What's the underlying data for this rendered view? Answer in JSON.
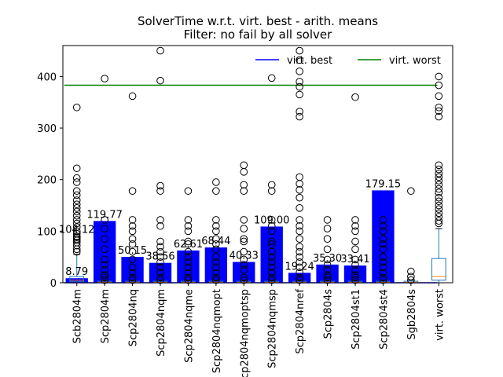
{
  "chart_data": {
    "type": "bar",
    "title_line1": "SolverTime w.r.t. virt. best - arith. means",
    "title_line2": "Filter: no fail by all solver",
    "xlabel": "",
    "ylabel": "",
    "ylim": [
      0,
      460
    ],
    "yticks": [
      0,
      100,
      200,
      300,
      400
    ],
    "grid": false,
    "legend_position": "top-right",
    "categories": [
      "Scb2804m",
      "Scp2804m",
      "Scp2804nq",
      "Scp2804nqm",
      "Scp2804nqme",
      "Scp2804nqmopt",
      "Scp2804nqmoptsp",
      "Scp2804nqmsp",
      "Scp2804nref",
      "Scp2804s",
      "Scp2804st1",
      "Scp2804st4",
      "Sgb2804s",
      "virt. worst"
    ],
    "tick_labels": [
      "Scb2804m",
      "Scp2804m",
      "Scp2804nq",
      "Scp2804nqm",
      "Scp2804nqme",
      "Scp2804nqmopt",
      "Scp2804nqmoptsp",
      "Scp2804nqmsp",
      "Scp2804nref",
      "Scp2804s",
      "Scp2804st1",
      "Scp2804st4",
      "Sgb2804s",
      "virt. worst"
    ],
    "bar_values": [
      8.79,
      119.77,
      50.15,
      38.56,
      62.61,
      68.44,
      40.33,
      109.0,
      19.24,
      35.3,
      33.41,
      179.15,
      null,
      null
    ],
    "bar_labels": [
      "8.79",
      "119.77",
      "50.15",
      "38.56",
      "62.61",
      "68.44",
      "40.33",
      "109.00",
      "19.24",
      "35.30",
      "33.41",
      "179.15",
      "",
      ""
    ],
    "extra_labels": [
      {
        "text": "104.12",
        "x_index": 0,
        "y": 104.12
      }
    ],
    "bar_color": "#0000ff",
    "lines": [
      {
        "name": "virt. best",
        "y": 0,
        "color": "#0000ff"
      },
      {
        "name": "virt. worst",
        "y": 383,
        "color": "#008000"
      }
    ],
    "boxes": [
      {
        "q1": 2,
        "med": 5,
        "q3": 12,
        "wlo": 0,
        "whi": 55
      },
      {
        "q1": 0,
        "med": 1,
        "q3": 3,
        "wlo": 0,
        "whi": 5
      },
      {
        "q1": 0,
        "med": 1,
        "q3": 3,
        "wlo": 0,
        "whi": 5
      },
      {
        "q1": 0,
        "med": 1,
        "q3": 3,
        "wlo": 0,
        "whi": 5
      },
      {
        "q1": 0,
        "med": 1,
        "q3": 3,
        "wlo": 0,
        "whi": 5
      },
      {
        "q1": 0,
        "med": 1,
        "q3": 3,
        "wlo": 0,
        "whi": 5
      },
      {
        "q1": 0,
        "med": 1,
        "q3": 3,
        "wlo": 0,
        "whi": 5
      },
      {
        "q1": 0,
        "med": 1,
        "q3": 3,
        "wlo": 0,
        "whi": 5
      },
      {
        "q1": 0,
        "med": 1,
        "q3": 3,
        "wlo": 0,
        "whi": 5
      },
      {
        "q1": 0,
        "med": 1,
        "q3": 3,
        "wlo": 0,
        "whi": 5
      },
      {
        "q1": 0,
        "med": 1,
        "q3": 3,
        "wlo": 0,
        "whi": 5
      },
      {
        "q1": 0,
        "med": 1,
        "q3": 3,
        "wlo": 0,
        "whi": 5
      },
      {
        "q1": 0,
        "med": 1,
        "q3": 3,
        "wlo": 0,
        "whi": 5
      },
      {
        "q1": 5,
        "med": 12,
        "q3": 47,
        "wlo": 0,
        "whi": 105
      }
    ],
    "outliers": [
      [
        340,
        222,
        203,
        195,
        178,
        170,
        160,
        152,
        145,
        138,
        130,
        122,
        115,
        108,
        100,
        95,
        90,
        88,
        85,
        82,
        78,
        72,
        65,
        60
      ],
      [
        396,
        122,
        105,
        85,
        65,
        45,
        35,
        25,
        15,
        10,
        5
      ],
      [
        362,
        178,
        122,
        110,
        100,
        85,
        75,
        60,
        45,
        30,
        20,
        10,
        5
      ],
      [
        450,
        392,
        188,
        178,
        122,
        110,
        80,
        70,
        60,
        50,
        40,
        30,
        20,
        10,
        5
      ],
      [
        178,
        122,
        110,
        100,
        80,
        75,
        60,
        50,
        40,
        30,
        20,
        10,
        5
      ],
      [
        195,
        178,
        122,
        110,
        100,
        85,
        75,
        65,
        50,
        40,
        30,
        20,
        10,
        5
      ],
      [
        228,
        215,
        190,
        178,
        122,
        105,
        85,
        80,
        60,
        45,
        35,
        25,
        10,
        5
      ],
      [
        397,
        190,
        178,
        122,
        110,
        100,
        80,
        75,
        60,
        50,
        40,
        30,
        20,
        10,
        5
      ],
      [
        450,
        432,
        410,
        390,
        380,
        365,
        332,
        322,
        205,
        192,
        180,
        165,
        145,
        122,
        110,
        100,
        85,
        70,
        60,
        50,
        40,
        30,
        20,
        10,
        5
      ],
      [
        122,
        105,
        85,
        65,
        45,
        35,
        25,
        15,
        10,
        5
      ],
      [
        360,
        122,
        110,
        100,
        80,
        65,
        45,
        35,
        25,
        15,
        10,
        5
      ],
      [
        122,
        110,
        100,
        85,
        75,
        65,
        50,
        40,
        30,
        20,
        10,
        5
      ],
      [
        178,
        22,
        12,
        5
      ],
      [
        400,
        383,
        362,
        340,
        333,
        322,
        228,
        220,
        212,
        205,
        198,
        190,
        182,
        175,
        165,
        158,
        150,
        143,
        135,
        128,
        120,
        115
      ]
    ]
  }
}
